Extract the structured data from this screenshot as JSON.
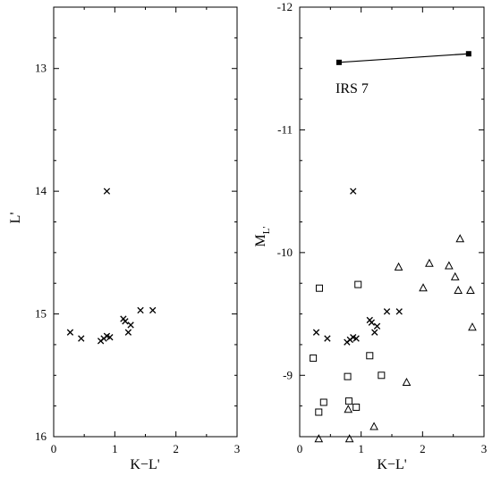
{
  "chart_data": [
    {
      "type": "scatter",
      "title": "",
      "xlabel": "K−L'",
      "ylabel": "L'",
      "xlim": [
        0,
        3
      ],
      "ylim": [
        16,
        12.5
      ],
      "y_inverted": true,
      "xticks": [
        0,
        1,
        2,
        3
      ],
      "yticks": [
        13,
        14,
        15,
        16
      ],
      "grid": false,
      "series": [
        {
          "marker": "cross",
          "x": [
            0.27,
            0.45,
            0.77,
            0.82,
            0.87,
            0.92,
            1.14,
            1.17,
            1.22,
            1.26,
            1.42,
            1.62,
            0.87
          ],
          "y": [
            15.15,
            15.2,
            15.22,
            15.2,
            15.18,
            15.19,
            15.04,
            15.06,
            15.15,
            15.09,
            14.97,
            14.97,
            14.0
          ]
        }
      ]
    },
    {
      "type": "scatter",
      "title": "",
      "xlabel": "K−L'",
      "ylabel": "M",
      "ylabel_subscript": "L'",
      "xlim": [
        0,
        3
      ],
      "ylim": [
        -8.5,
        -12
      ],
      "y_inverted": true,
      "xticks": [
        0,
        1,
        2,
        3
      ],
      "yticks": [
        -9,
        -10,
        -11,
        -12
      ],
      "grid": false,
      "annotation": "IRS 7",
      "series": [
        {
          "marker": "cross",
          "x": [
            0.27,
            0.45,
            0.77,
            0.82,
            0.87,
            0.92,
            1.14,
            1.17,
            1.22,
            1.26,
            1.42,
            1.62,
            0.87
          ],
          "y": [
            -9.35,
            -9.3,
            -9.27,
            -9.29,
            -9.31,
            -9.3,
            -9.45,
            -9.43,
            -9.35,
            -9.4,
            -9.52,
            -9.52,
            -10.5
          ]
        },
        {
          "marker": "square",
          "x": [
            0.22,
            0.32,
            0.31,
            0.39,
            0.78,
            0.8,
            0.92,
            0.95,
            1.14,
            1.33
          ],
          "y": [
            -9.14,
            -9.71,
            -8.7,
            -8.78,
            -8.99,
            -8.79,
            -8.74,
            -9.74,
            -9.16,
            -9.0
          ]
        },
        {
          "marker": "triangle",
          "x": [
            1.61,
            2.11,
            2.01,
            2.43,
            2.61,
            2.53,
            2.58,
            2.78,
            2.81,
            1.74,
            1.21,
            0.81,
            0.31,
            0.79
          ],
          "y": [
            -9.88,
            -9.91,
            -9.71,
            -9.89,
            -10.11,
            -9.8,
            -9.69,
            -9.69,
            -9.39,
            -8.94,
            -8.58,
            -8.48,
            -8.48,
            -8.72
          ]
        },
        {
          "marker": "filled-square-line",
          "x": [
            0.64,
            2.75
          ],
          "y": [
            -11.55,
            -11.62
          ]
        }
      ]
    }
  ]
}
